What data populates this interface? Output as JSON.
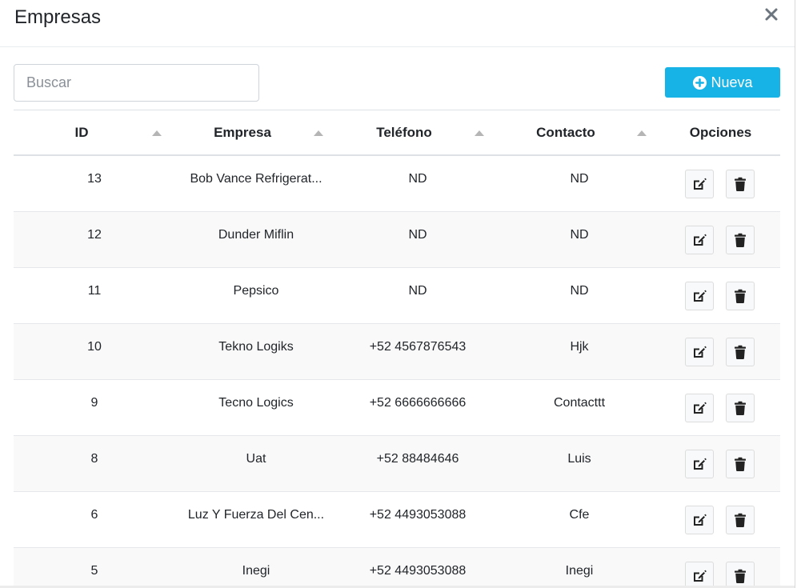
{
  "modal": {
    "title": "Empresas"
  },
  "search": {
    "placeholder": "Buscar",
    "value": ""
  },
  "toolbar": {
    "new_label": "Nueva"
  },
  "table": {
    "columns": [
      "ID",
      "Empresa",
      "Teléfono",
      "Contacto",
      "Opciones"
    ],
    "rows": [
      {
        "id": "13",
        "empresa": "Bob Vance Refrigerat...",
        "telefono": "ND",
        "contacto": "ND"
      },
      {
        "id": "12",
        "empresa": "Dunder Miflin",
        "telefono": "ND",
        "contacto": "ND"
      },
      {
        "id": "11",
        "empresa": "Pepsico",
        "telefono": "ND",
        "contacto": "ND"
      },
      {
        "id": "10",
        "empresa": "Tekno Logiks",
        "telefono": "+52 4567876543",
        "contacto": "Hjk"
      },
      {
        "id": "9",
        "empresa": "Tecno Logics",
        "telefono": "+52 6666666666",
        "contacto": "Contacttt"
      },
      {
        "id": "8",
        "empresa": "Uat",
        "telefono": "+52 88484646",
        "contacto": "Luis"
      },
      {
        "id": "6",
        "empresa": "Luz Y Fuerza Del Cen...",
        "telefono": "+52 4493053088",
        "contacto": "Cfe"
      },
      {
        "id": "5",
        "empresa": "Inegi",
        "telefono": "+52 4493053088",
        "contacto": "Inegi"
      }
    ]
  },
  "icons": {
    "close": "close-icon",
    "new": "plus-circle-icon",
    "edit": "edit-icon",
    "delete": "trash-icon"
  },
  "colors": {
    "accent": "#17b3e6",
    "stripe": "#f9f9f9"
  }
}
